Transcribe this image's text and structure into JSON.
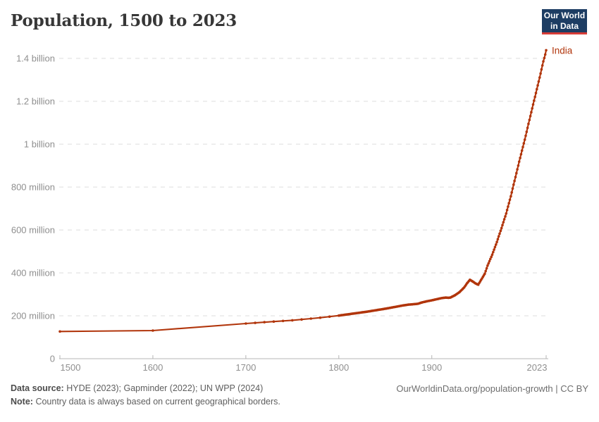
{
  "header": {
    "title": "Population, 1500 to 2023",
    "logo": {
      "line1": "Our World",
      "line2": "in Data",
      "bg_color": "#1d3d63",
      "accent_color": "#d73c37"
    }
  },
  "chart_data": {
    "type": "line",
    "title": "Population, 1500 to 2023",
    "xlabel": "",
    "ylabel": "",
    "unit": "people",
    "values_in": "millions",
    "x_range": [
      1500,
      2023
    ],
    "y_range_millions": [
      0,
      1450
    ],
    "grid": "dashed-horizontal",
    "legend_position": "end-of-line-label",
    "x_ticks": [
      {
        "year": 1500,
        "label": "1500"
      },
      {
        "year": 1600,
        "label": "1600"
      },
      {
        "year": 1700,
        "label": "1700"
      },
      {
        "year": 1800,
        "label": "1800"
      },
      {
        "year": 1900,
        "label": "1900"
      },
      {
        "year": 2023,
        "label": "2023"
      }
    ],
    "y_ticks": [
      {
        "value_millions": 0,
        "label": "0"
      },
      {
        "value_millions": 200,
        "label": "200 million"
      },
      {
        "value_millions": 400,
        "label": "400 million"
      },
      {
        "value_millions": 600,
        "label": "600 million"
      },
      {
        "value_millions": 800,
        "label": "800 million"
      },
      {
        "value_millions": 1000,
        "label": "1 billion"
      },
      {
        "value_millions": 1200,
        "label": "1.2 billion"
      },
      {
        "value_millions": 1400,
        "label": "1.4 billion"
      }
    ],
    "series": [
      {
        "name": "India",
        "color": "#b1350b",
        "marker_cadence": {
          "1500-1700": 100,
          "1700-1800": 10,
          "1800-2023": 1
        },
        "points_year_millions": [
          [
            1500,
            127
          ],
          [
            1600,
            131
          ],
          [
            1700,
            164
          ],
          [
            1710,
            167
          ],
          [
            1720,
            170
          ],
          [
            1730,
            173
          ],
          [
            1740,
            176
          ],
          [
            1750,
            179
          ],
          [
            1760,
            183
          ],
          [
            1770,
            187
          ],
          [
            1780,
            191
          ],
          [
            1790,
            196
          ],
          [
            1800,
            201
          ],
          [
            1810,
            207
          ],
          [
            1820,
            213
          ],
          [
            1830,
            219
          ],
          [
            1840,
            226
          ],
          [
            1850,
            233
          ],
          [
            1860,
            241
          ],
          [
            1870,
            249
          ],
          [
            1875,
            252
          ],
          [
            1880,
            254
          ],
          [
            1885,
            256
          ],
          [
            1890,
            263
          ],
          [
            1895,
            268
          ],
          [
            1900,
            272
          ],
          [
            1905,
            277
          ],
          [
            1910,
            282
          ],
          [
            1915,
            285
          ],
          [
            1918,
            284
          ],
          [
            1920,
            285
          ],
          [
            1925,
            296
          ],
          [
            1930,
            311
          ],
          [
            1935,
            333
          ],
          [
            1938,
            352
          ],
          [
            1941,
            368
          ],
          [
            1944,
            360
          ],
          [
            1947,
            351
          ],
          [
            1950,
            345
          ],
          [
            1953,
            367
          ],
          [
            1957,
            396
          ],
          [
            1960,
            434
          ],
          [
            1965,
            485
          ],
          [
            1970,
            544
          ],
          [
            1975,
            609
          ],
          [
            1980,
            677
          ],
          [
            1985,
            757
          ],
          [
            1990,
            847
          ],
          [
            1995,
            936
          ],
          [
            2000,
            1021
          ],
          [
            2005,
            1113
          ],
          [
            2010,
            1203
          ],
          [
            2015,
            1292
          ],
          [
            2020,
            1386
          ],
          [
            2022,
            1418
          ],
          [
            2023,
            1438
          ]
        ]
      }
    ]
  },
  "footer": {
    "data_source_label": "Data source:",
    "data_source": "HYDE (2023); Gapminder (2022); UN WPP (2024)",
    "note_label": "Note:",
    "note": "Country data is always based on current geographical borders.",
    "link": "OurWorldinData.org/population-growth | CC BY"
  },
  "colors": {
    "series": "#b1350b",
    "grid": "#dcdcdc",
    "axis": "#b5b5b5",
    "axis_text": "#8f8f8f",
    "title_text": "#373737",
    "footer_text": "#5e5e5e"
  }
}
